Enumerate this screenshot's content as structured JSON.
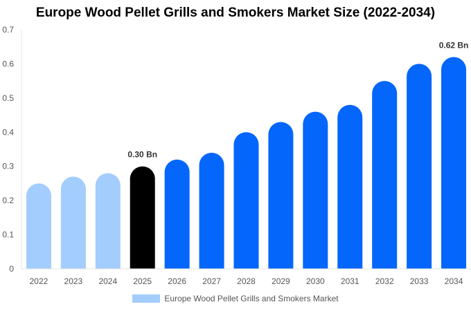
{
  "chart_data": {
    "type": "bar",
    "title": "Europe Wood Pellet Grills and Smokers Market Size (2022-2034)",
    "categories": [
      "2022",
      "2023",
      "2024",
      "2025",
      "2026",
      "2027",
      "2028",
      "2029",
      "2030",
      "2031",
      "2032",
      "2033",
      "2034"
    ],
    "series": [
      {
        "name": "Europe Wood Pellet Grills and Smokers Market",
        "values": [
          0.25,
          0.27,
          0.28,
          0.3,
          0.32,
          0.34,
          0.4,
          0.43,
          0.46,
          0.48,
          0.55,
          0.6,
          0.62
        ]
      }
    ],
    "data_labels": [
      {
        "category": "2025",
        "text": "0.30 Bn"
      },
      {
        "category": "2034",
        "text": "0.62 Bn"
      }
    ],
    "yticks": [
      "0",
      "0.1",
      "0.2",
      "0.3",
      "0.4",
      "0.5",
      "0.6",
      "0.7"
    ],
    "ylim": [
      0,
      0.7
    ],
    "grid": false,
    "legend_position": "bottom",
    "colors": {
      "historical": "#a3cdfc",
      "current": "#000000",
      "forecast": "#0466fb",
      "legend": "#a3cdfc"
    },
    "bar_color_groups": [
      "historical",
      "historical",
      "historical",
      "current",
      "forecast",
      "forecast",
      "forecast",
      "forecast",
      "forecast",
      "forecast",
      "forecast",
      "forecast",
      "forecast"
    ]
  }
}
